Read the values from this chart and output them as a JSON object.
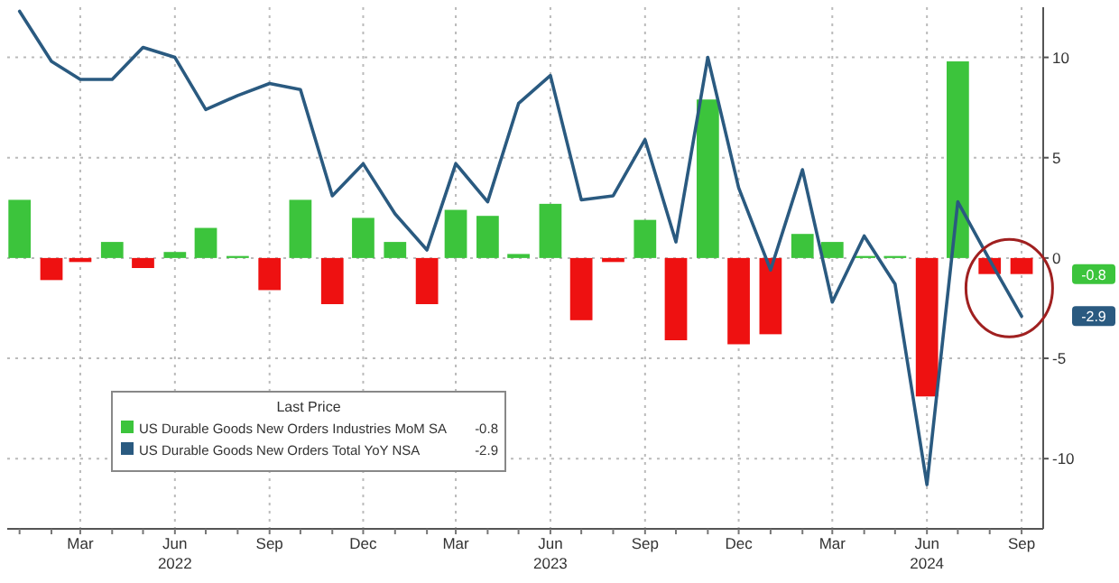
{
  "chart_data": {
    "type": "bar",
    "legend_title": "Last Price",
    "annotations": [
      "-0.8",
      "-2.9",
      "-0.8",
      "-2.9"
    ],
    "legend": "bottom left",
    "grid": true,
    "x": [
      "2022-01",
      "2022-02",
      "2022-03",
      "2022-04",
      "2022-05",
      "2022-06",
      "2022-07",
      "2022-08",
      "2022-09",
      "2022-10",
      "2022-11",
      "2022-12",
      "2023-01",
      "2023-02",
      "2023-03",
      "2023-04",
      "2023-05",
      "2023-06",
      "2023-07",
      "2023-08",
      "2023-09",
      "2023-10",
      "2023-11",
      "2023-12",
      "2024-01",
      "2024-02",
      "2024-03",
      "2024-04",
      "2024-05",
      "2024-06",
      "2024-07",
      "2024-08",
      "2024-09"
    ],
    "xlim": [
      "2021-12-20",
      "2024-09-22"
    ],
    "xticks": [
      {
        "value": "2022-03",
        "label": "Mar"
      },
      {
        "value": "2022-06",
        "label": "Jun\n2022"
      },
      {
        "value": "2022-09",
        "label": "Sep"
      },
      {
        "value": "2022-12",
        "label": "Dec"
      },
      {
        "value": "2023-03",
        "label": "Mar"
      },
      {
        "value": "2023-06",
        "label": "Jun\n2023"
      },
      {
        "value": "2023-09",
        "label": "Sep"
      },
      {
        "value": "2023-12",
        "label": "Dec"
      },
      {
        "value": "2024-03",
        "label": "Mar"
      },
      {
        "value": "2024-06",
        "label": "Jun\n2024"
      },
      {
        "value": "2024-09",
        "label": "Sep"
      }
    ],
    "ylim": [
      -13.5,
      12.5
    ],
    "yticks": [
      -10,
      -5,
      0,
      5,
      10
    ],
    "series": [
      {
        "name": "US Durable Goods New Orders Industries MoM SA",
        "color": "#3cc43c",
        "values": [
          2.9,
          -1.1,
          -0.2,
          0.8,
          -0.5,
          0.3,
          1.5,
          0.1,
          -1.6,
          2.9,
          -2.3,
          2.0,
          0.8,
          -2.3,
          2.4,
          2.1,
          0.2,
          2.7,
          -3.1,
          -0.2,
          1.9,
          -4.1,
          7.9,
          -4.3,
          -3.8,
          1.2,
          0.8,
          0.1,
          0.1,
          -6.9,
          9.8,
          -0.8,
          -0.8
        ],
        "colors": [
          "#3cc43c",
          "#ee1111",
          "#ee1111",
          "#3cc43c",
          "#ee1111",
          "#3cc43c",
          "#3cc43c",
          "#3cc43c",
          "#ee1111",
          "#3cc43c",
          "#ee1111",
          "#3cc43c",
          "#3cc43c",
          "#ee1111",
          "#3cc43c",
          "#3cc43c",
          "#3cc43c",
          "#3cc43c",
          "#ee1111",
          "#ee1111",
          "#3cc43c",
          "#ee1111",
          "#3cc43c",
          "#ee1111",
          "#ee1111",
          "#3cc43c",
          "#3cc43c",
          "#3cc43c",
          "#3cc43c",
          "#ee1111",
          "#3cc43c",
          "#ee1111",
          "#ee1111"
        ]
      },
      {
        "name": "US Durable Goods New Orders Total YoY NSA",
        "type": "line",
        "color": "#2a5a80",
        "values": [
          12.3,
          9.8,
          8.9,
          8.9,
          10.5,
          10.0,
          7.4,
          8.1,
          8.7,
          8.4,
          3.1,
          4.7,
          2.2,
          0.4,
          4.7,
          2.8,
          7.7,
          9.1,
          2.9,
          3.1,
          5.9,
          0.8,
          10.0,
          3.5,
          -0.6,
          4.4,
          -2.2,
          1.1,
          -1.3,
          -11.3,
          2.8,
          -0.1,
          -2.9
        ]
      }
    ]
  }
}
